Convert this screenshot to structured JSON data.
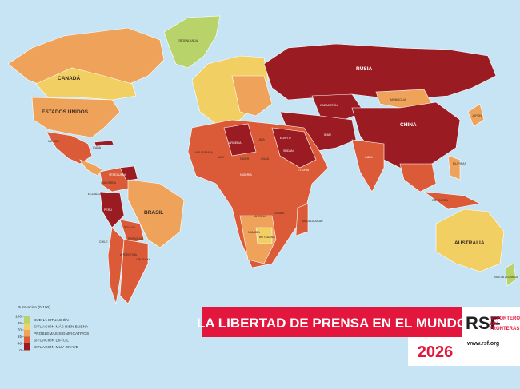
{
  "map": {
    "title": "LA LIBERTAD DE PRENSA EN EL MUNDO",
    "year": "2026",
    "org": {
      "logo": "RSF",
      "name": "REPORTEROS SIN FRONTERAS",
      "url": "www.rsf.org"
    },
    "legend": {
      "title": "Puntuación (0-100)",
      "ticks": [
        100,
        85,
        70,
        55,
        40,
        0
      ],
      "categories": [
        {
          "name": "BUENA SITUACIÓN",
          "color": "#b8d36a"
        },
        {
          "name": "SITUACIÓN MÁS BIEN BUENA",
          "color": "#f2cf63"
        },
        {
          "name": "PROBLEMAS SIGNIFICATIVOS",
          "color": "#eea25a"
        },
        {
          "name": "SITUACIÓN DIFÍCIL",
          "color": "#db5a38"
        },
        {
          "name": "SITUACIÓN MUY GRAVE",
          "color": "#9a1c22"
        }
      ]
    },
    "countries": [
      "CANADÁ",
      "ESTADOS UNIDOS",
      "MÉXICO",
      "CUBA",
      "VENEZUELA",
      "COLOMBIA",
      "ECUADOR",
      "PERÚ",
      "BRASIL",
      "BOLIVIA",
      "PARAGUAY",
      "CHILE",
      "ARGENTINA",
      "URUGUAY",
      "RUSIA",
      "KAZAJISTÁN",
      "MONGOLIA",
      "CHINA",
      "INDIA",
      "JAPÓN",
      "IRÁN",
      "ARGELIA",
      "LIBIA",
      "EGIPTO",
      "MALÍ",
      "MAURITANIA",
      "NÍGER",
      "CHAD",
      "SUDÁN",
      "ETIOPÍA",
      "NIGERIA",
      "ANGOLA",
      "ZAMBIA",
      "NAMIBIA",
      "BOTSUANA",
      "MADAGASCAR",
      "INDONESIA",
      "FILIPINAS",
      "AUSTRALIA",
      "NUEVA ZELANDA",
      "GROENLANDIA"
    ]
  }
}
